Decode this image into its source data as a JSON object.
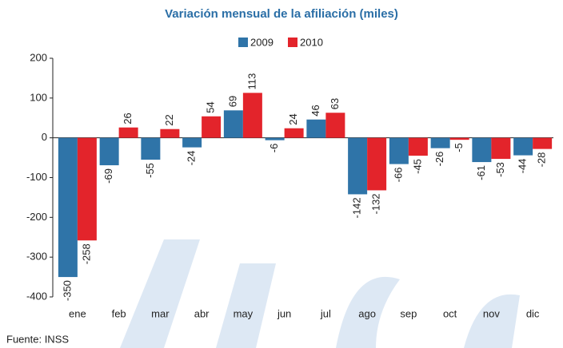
{
  "chart_data": {
    "type": "bar",
    "title": "Variación mensual de la afiliación (miles)",
    "categories": [
      "ene",
      "feb",
      "mar",
      "abr",
      "may",
      "jun",
      "jul",
      "ago",
      "sep",
      "oct",
      "nov",
      "dic"
    ],
    "series": [
      {
        "name": "2009",
        "color": "#2f74a8",
        "values": [
          -350,
          -69,
          -55,
          -24,
          69,
          -6,
          46,
          -142,
          -66,
          -26,
          -61,
          -44
        ]
      },
      {
        "name": "2010",
        "color": "#e3242b",
        "values": [
          -258,
          26,
          22,
          54,
          113,
          24,
          63,
          -132,
          -45,
          -5,
          -53,
          -28
        ]
      }
    ],
    "ylim": [
      -400,
      200
    ],
    "yticks": [
      -400,
      -300,
      -200,
      -100,
      0,
      100,
      200
    ],
    "source": "Fuente: INSS"
  }
}
